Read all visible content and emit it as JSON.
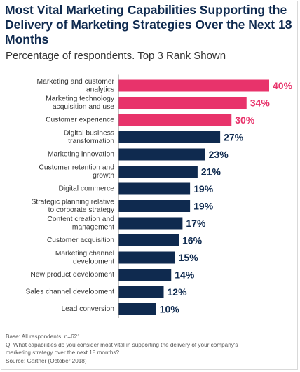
{
  "header": {
    "title": "Most Vital Marketing Capabilities Supporting the Delivery of Marketing Strategies Over the Next 18 Months",
    "subtitle": "Percentage of respondents. Top 3 Rank Shown"
  },
  "footer": {
    "base": "Base: All respondents, n=621",
    "question_line1": "Q. What capabilities do you consider most vital in supporting the delivery of your company's",
    "question_line2": "marketing strategy over the next 18 months?",
    "source": "Source: Gartner (October 2018)"
  },
  "colors": {
    "highlight": "#e8336b",
    "primary": "#0f2a4f",
    "label_text": "#333333",
    "axis_line": "#888888"
  },
  "chart_data": {
    "type": "bar",
    "orientation": "horizontal",
    "categories": [
      [
        "Marketing and customer",
        "analytics"
      ],
      [
        "Marketing technology",
        "acquisition and use"
      ],
      [
        "Customer experience"
      ],
      [
        "Digital business",
        "transformation"
      ],
      [
        "Marketing innovation"
      ],
      [
        "Customer retention and",
        "growth"
      ],
      [
        "Digital commerce"
      ],
      [
        "Strategic planning relative",
        "to corporate strategy"
      ],
      [
        "Content creation and",
        "management"
      ],
      [
        "Customer acquisition"
      ],
      [
        "Marketing channel",
        "development"
      ],
      [
        "New product development"
      ],
      [
        "Sales channel development"
      ],
      [
        "Lead conversion"
      ]
    ],
    "values": [
      40,
      34,
      30,
      27,
      23,
      21,
      19,
      19,
      17,
      16,
      15,
      14,
      12,
      10
    ],
    "value_labels": [
      "40%",
      "34%",
      "30%",
      "27%",
      "23%",
      "21%",
      "19%",
      "19%",
      "17%",
      "16%",
      "15%",
      "14%",
      "12%",
      "10%"
    ],
    "highlighted_count": 3,
    "xlim": [
      0,
      40
    ],
    "grid": false,
    "legend": "none"
  }
}
